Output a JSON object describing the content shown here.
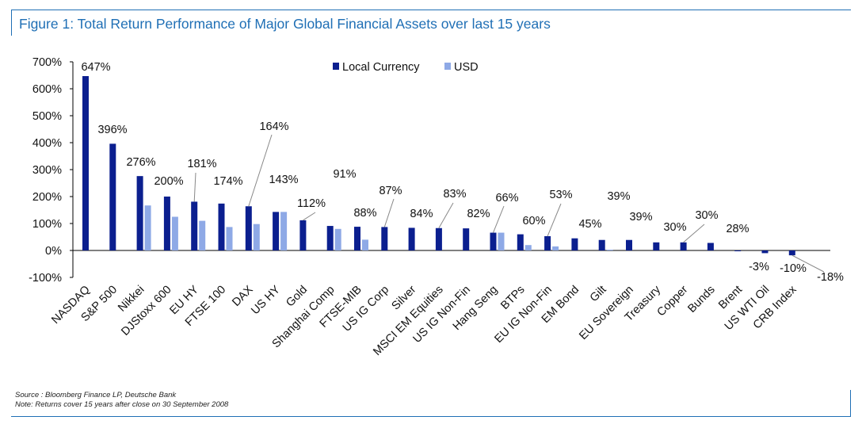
{
  "title": "Figure 1: Total Return Performance of Major Global Financial Assets over last 15 years",
  "footnotes": [
    "Source : Bloomberg Finance LP, Deutsche Bank",
    "Note: Returns cover 15 years after close on 30 September 2008"
  ],
  "colors": {
    "frame": "#1f6fb5",
    "local": "#0b1f8f",
    "usd": "#8ea9e6"
  },
  "chart_data": {
    "type": "bar",
    "ylim": [
      -100,
      700
    ],
    "yticks": [
      -100,
      0,
      100,
      200,
      300,
      400,
      500,
      600,
      700
    ],
    "ytick_labels": [
      "-100%",
      "0%",
      "100%",
      "200%",
      "300%",
      "400%",
      "500%",
      "600%",
      "700%"
    ],
    "legend": [
      "Local Currency",
      "USD"
    ],
    "legend_position": "top-center",
    "categories": [
      "NASDAQ",
      "S&P 500",
      "Nikkei",
      "DJStoxx 600",
      "EU HY",
      "FTSE 100",
      "DAX",
      "US HY",
      "Gold",
      "Shanghai Comp",
      "FTSE-MIB",
      "US IG Corp",
      "Silver",
      "MSCI EM Equities",
      "US IG Non-Fin",
      "Hang Seng",
      "BTPs",
      "EU IG Non-Fin",
      "EM Bond",
      "Gilt",
      "EU Sovereign",
      "Treasury",
      "Copper",
      "Bunds",
      "Brent",
      "US WTI Oil",
      "CRB Index"
    ],
    "series": [
      {
        "name": "Local Currency",
        "values": [
          647,
          396,
          276,
          200,
          181,
          174,
          164,
          143,
          112,
          91,
          88,
          87,
          84,
          83,
          82,
          66,
          60,
          53,
          45,
          39,
          39,
          30,
          30,
          28,
          -3,
          -10,
          -18
        ]
      },
      {
        "name": "USD",
        "values": [
          null,
          null,
          167,
          125,
          110,
          87,
          98,
          143,
          null,
          80,
          40,
          null,
          null,
          null,
          null,
          66,
          20,
          15,
          null,
          3,
          null,
          null,
          null,
          null,
          null,
          null,
          null
        ]
      }
    ],
    "data_labels": [
      "647%",
      "396%",
      "276%",
      "200%",
      "181%",
      "174%",
      "164%",
      "143%",
      "112%",
      "91%",
      "88%",
      "87%",
      "84%",
      "83%",
      "82%",
      "66%",
      "60%",
      "53%",
      "45%",
      "39%",
      "39%",
      "30%",
      "30%",
      "28%",
      "-3%",
      "-10%",
      "-18%"
    ]
  }
}
